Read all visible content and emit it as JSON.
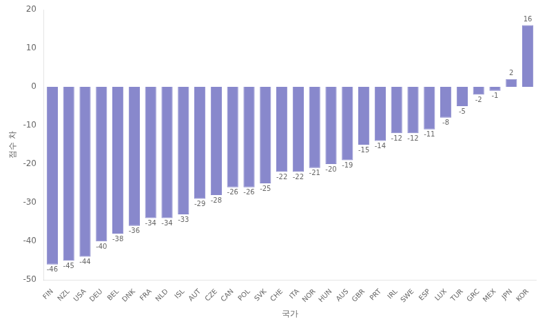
{
  "chart_data": {
    "type": "bar",
    "categories": [
      "FIN",
      "NZL",
      "USA",
      "DEU",
      "BEL",
      "DNK",
      "FRA",
      "NLD",
      "ISL",
      "AUT",
      "CZE",
      "CAN",
      "POL",
      "SVK",
      "CHE",
      "ITA",
      "NOR",
      "HUN",
      "AUS",
      "GBR",
      "PRT",
      "IRL",
      "SWE",
      "ESP",
      "LUX",
      "TUR",
      "GRC",
      "MEX",
      "JPN",
      "KOR"
    ],
    "values": [
      -46,
      -45,
      -44,
      -40,
      -38,
      -36,
      -34,
      -34,
      -33,
      -29,
      -28,
      -26,
      -26,
      -25,
      -22,
      -22,
      -21,
      -20,
      -19,
      -15,
      -14,
      -12,
      -12,
      -11,
      -8,
      -5,
      -2,
      -1,
      2,
      16
    ],
    "color": "#8888cc",
    "xlabel": "국가",
    "ylabel": "점수 차",
    "ylim": [
      -50,
      20
    ],
    "yticks": [
      -50,
      -40,
      -30,
      -20,
      -10,
      0,
      10,
      20
    ],
    "grid": false,
    "data_labels": true
  }
}
